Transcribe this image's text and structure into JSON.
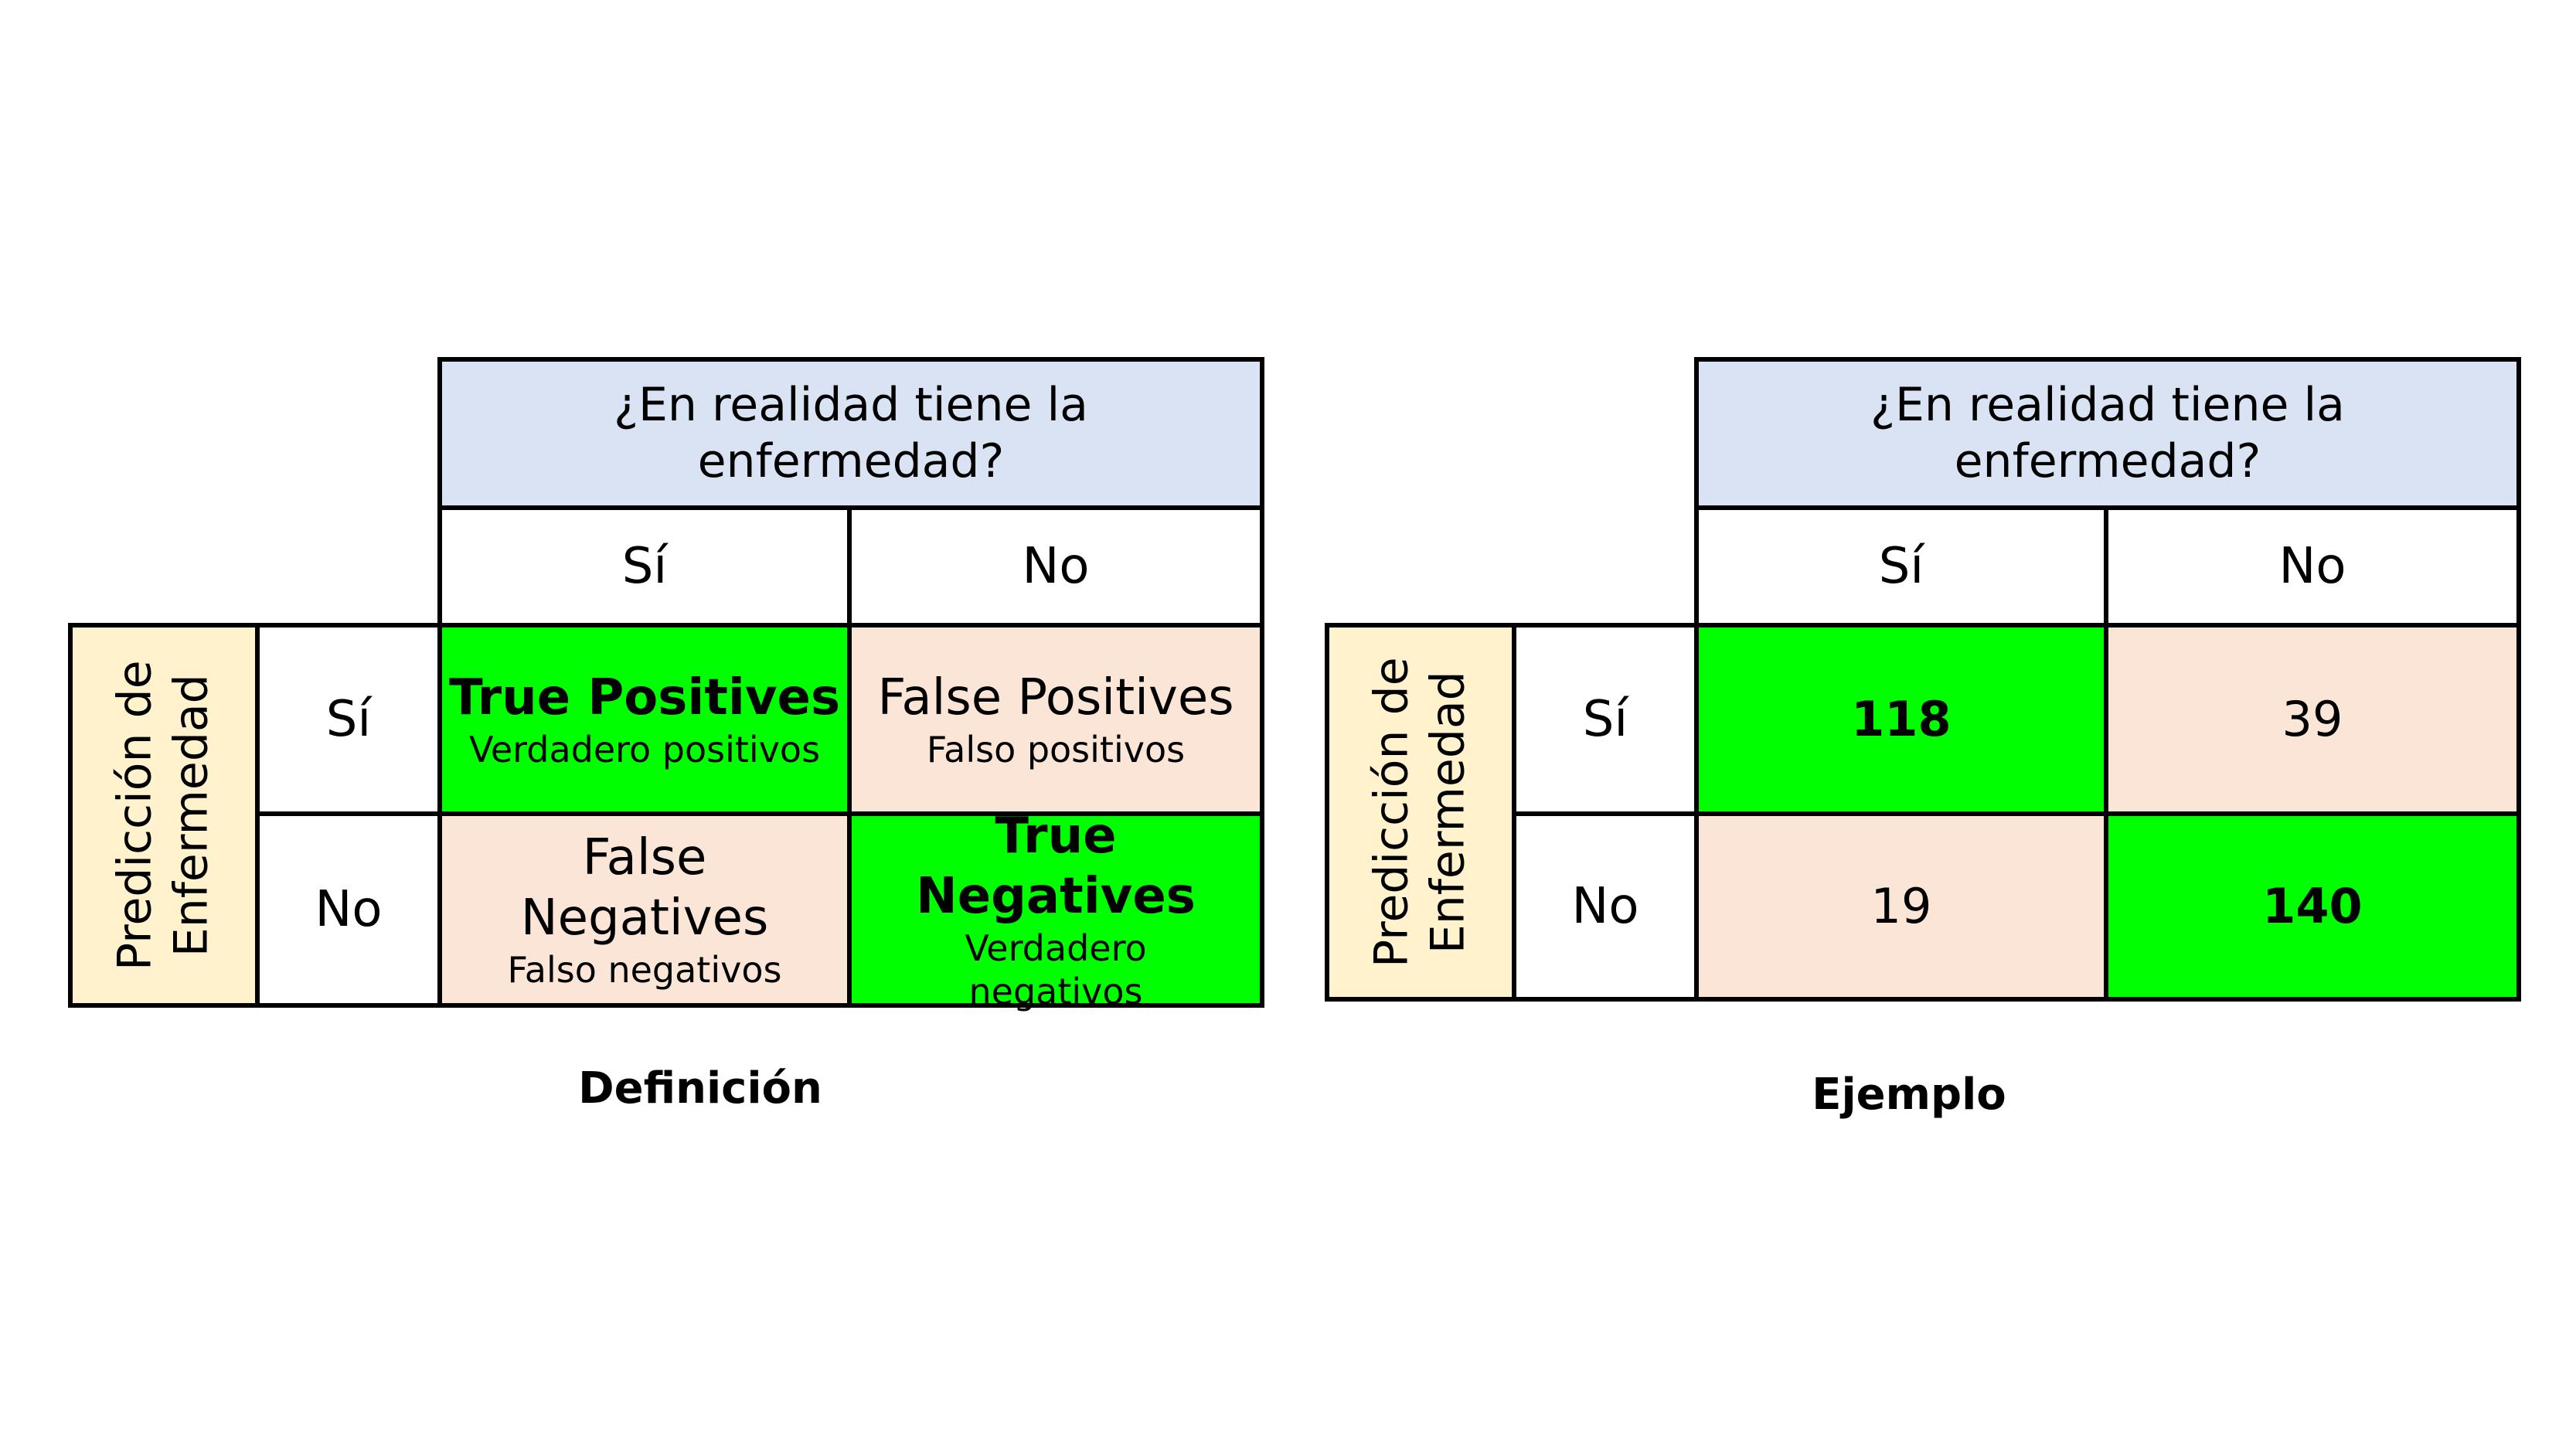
{
  "definition": {
    "header_line1": "¿En realidad tiene la",
    "header_line2": "enfermedad?",
    "col_yes": "Sí",
    "col_no": "No",
    "side_line1": "Predicción de",
    "side_line2": "Enfermedad",
    "row_yes": "Sí",
    "row_no": "No",
    "tp_title": "True Positives",
    "tp_sub": "Verdadero positivos",
    "fp_title": "False Positives",
    "fp_sub": "Falso positivos",
    "fn_title_1": "False",
    "fn_title_2": "Negatives",
    "fn_sub": "Falso negativos",
    "tn_title": "True Negatives",
    "tn_sub_1": "Verdadero",
    "tn_sub_2": "negativos",
    "caption": "Definición"
  },
  "example": {
    "header_line1": "¿En realidad tiene la",
    "header_line2": "enfermedad?",
    "col_yes": "Sí",
    "col_no": "No",
    "side_line1": "Predicción de",
    "side_line2": "Enfermedad",
    "row_yes": "Sí",
    "row_no": "No",
    "tp": "118",
    "fp": "39",
    "fn": "19",
    "tn": "140",
    "caption": "Ejemplo"
  },
  "colors": {
    "header_bg": "#dae3f3",
    "side_bg": "#fff2cc",
    "correct_bg": "#00ff00",
    "error_bg": "#fbe5d6"
  }
}
